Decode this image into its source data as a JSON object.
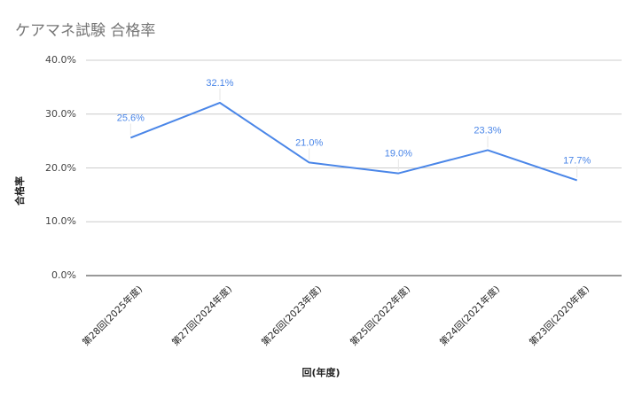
{
  "title": "ケアマネ試験 合格率",
  "chart_data": {
    "type": "line",
    "title": "ケアマネ試験 合格率",
    "xlabel": "回(年度)",
    "ylabel": "合格率",
    "categories": [
      "第28回(2025年度)",
      "第27回(2024年度)",
      "第26回(2023年度)",
      "第25回(2022年度)",
      "第24回(2021年度)",
      "第23回(2020年度)"
    ],
    "series": [
      {
        "name": "合格率",
        "values": [
          25.6,
          32.1,
          21.0,
          19.0,
          23.3,
          17.7
        ],
        "color": "#4a86e8"
      }
    ],
    "data_labels": [
      "25.6%",
      "32.1%",
      "21.0%",
      "19.0%",
      "23.3%",
      "17.7%"
    ],
    "yticks": [
      "0.0%",
      "10.0%",
      "20.0%",
      "30.0%",
      "40.0%"
    ],
    "ylim": [
      0,
      40
    ],
    "grid": true,
    "legend": "none"
  }
}
